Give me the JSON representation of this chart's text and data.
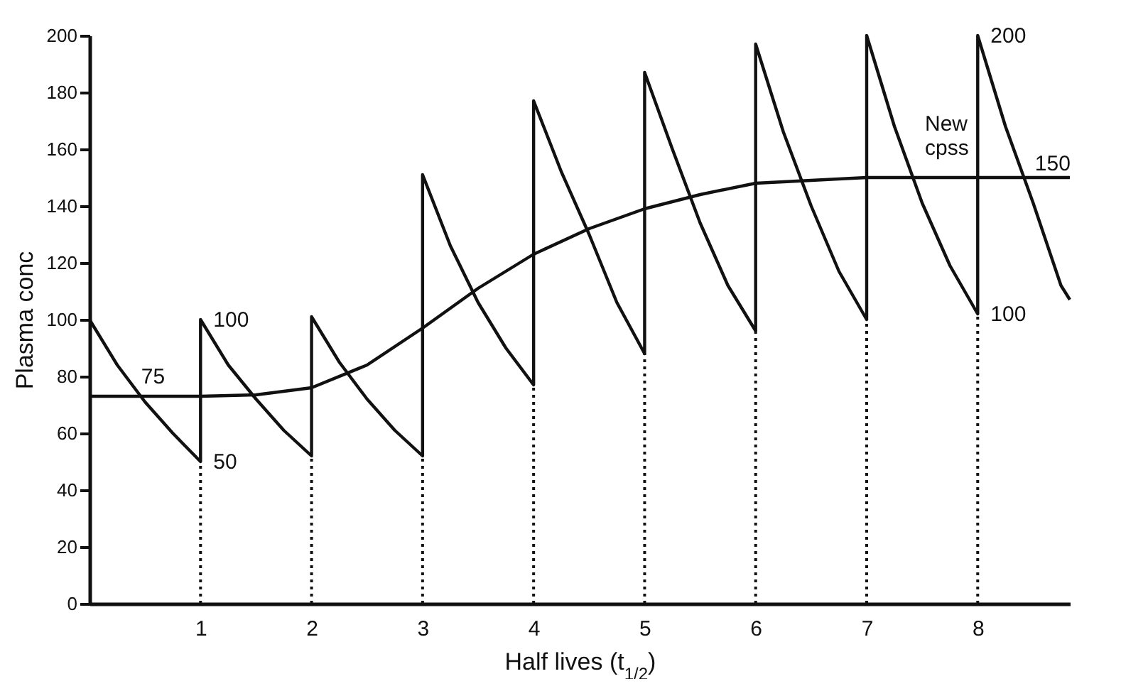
{
  "chart_data": {
    "type": "line",
    "xlabel": "Half lives (t$_{1/2}$)",
    "ylabel": "Plasma conc",
    "xlim": [
      0,
      8.83
    ],
    "xticks": [
      1,
      2,
      3,
      4,
      5,
      6,
      7,
      8
    ],
    "ylim": [
      0,
      200
    ],
    "yticks": [
      0,
      20,
      40,
      60,
      80,
      100,
      120,
      140,
      160,
      180,
      200
    ],
    "grid": false,
    "legend": false,
    "marker": "none",
    "line_style": "solid",
    "series": [
      {
        "color": "#111111",
        "x": [
          0,
          0.25,
          0.5,
          0.75,
          1,
          1,
          1.25,
          1.5,
          1.75,
          2,
          2,
          2.25,
          2.5,
          2.75,
          3,
          3,
          3.25,
          3.5,
          3.75,
          4,
          4,
          4.25,
          4.5,
          4.75,
          5,
          5,
          5.25,
          5.5,
          5.75,
          6,
          6,
          6.25,
          6.5,
          6.75,
          7,
          7,
          7.25,
          7.5,
          7.75,
          8,
          8,
          8.25,
          8.5,
          8.75,
          8.83
        ],
        "values": [
          100,
          84,
          71,
          60,
          50,
          100,
          84,
          72,
          61,
          52,
          101,
          85,
          72,
          61,
          52,
          151,
          126,
          106,
          90,
          77,
          177,
          152,
          130,
          106,
          88,
          187,
          160,
          134,
          112,
          96,
          197,
          166,
          140,
          117,
          100,
          200,
          168,
          141,
          119,
          102,
          200,
          168,
          141,
          112,
          107
        ]
      },
      {
        "color": "#111111",
        "x": [
          0,
          1,
          1.5,
          2,
          2.5,
          3,
          3.5,
          4,
          4.5,
          5,
          5.5,
          6,
          6.5,
          7,
          8,
          8.83
        ],
        "values": [
          73,
          73,
          73.5,
          76,
          84,
          97,
          111,
          123,
          132,
          139,
          144,
          148,
          149,
          150,
          150,
          150
        ]
      }
    ],
    "ref_lines": [
      {
        "axis": "x",
        "value": 1,
        "line_style": "dotted"
      },
      {
        "axis": "x",
        "value": 2,
        "line_style": "dotted"
      },
      {
        "axis": "x",
        "value": 3,
        "line_style": "dotted"
      },
      {
        "axis": "x",
        "value": 4,
        "line_style": "dotted"
      },
      {
        "axis": "x",
        "value": 5,
        "line_style": "dotted"
      },
      {
        "axis": "x",
        "value": 6,
        "line_style": "dotted"
      },
      {
        "axis": "x",
        "value": 7,
        "line_style": "dotted"
      },
      {
        "axis": "x",
        "value": 8,
        "line_style": "dotted"
      }
    ],
    "annotations": [
      {
        "text": "100",
        "x": 1,
        "y": 100
      },
      {
        "text": "50",
        "x": 1,
        "y": 50
      },
      {
        "text": "75",
        "x": 0.35,
        "y": 80
      },
      {
        "text": "200",
        "x": 8,
        "y": 200
      },
      "New cpss",
      {
        "text": "150",
        "x": 8.4,
        "y": 155
      },
      {
        "text": "100",
        "x": 8,
        "y": 102
      }
    ]
  }
}
